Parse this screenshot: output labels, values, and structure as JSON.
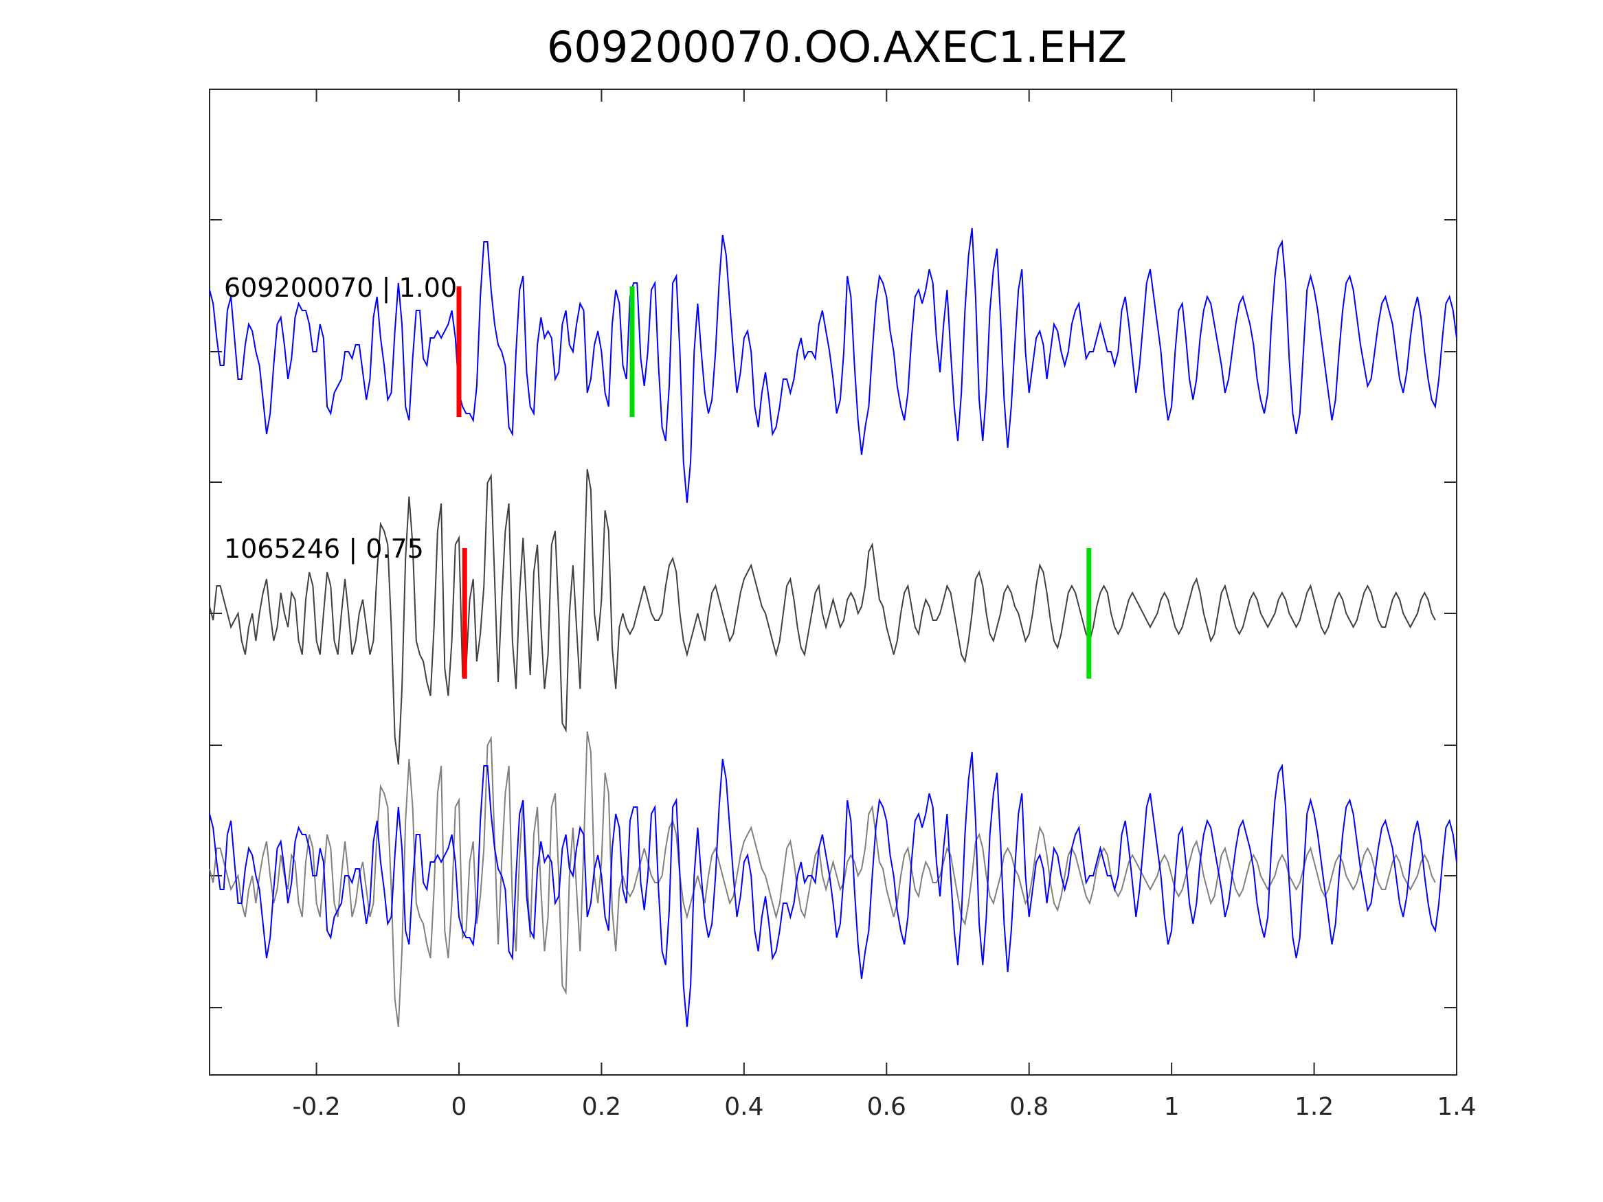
{
  "chart_data": {
    "type": "line",
    "title": "609200070.OO.AXEC1.EHZ",
    "xlabel": "",
    "ylabel": "",
    "xlim": [
      -0.35,
      1.4
    ],
    "x_ticks": [
      -0.2,
      0,
      0.2,
      0.4,
      0.6,
      0.8,
      1,
      1.2,
      1.4
    ],
    "x_tick_labels": [
      "-0.2",
      "0",
      "0.2",
      "0.4",
      "0.6",
      "0.8",
      "1",
      "1.2",
      "1.4"
    ],
    "y_tick_labels": [],
    "grid": false,
    "colors": {
      "template": "#0000ff",
      "detection": "#404040",
      "overlay_detection": "#808080",
      "p_pick": "#ff0000",
      "s_pick": "#00dd00",
      "axes": "#262626"
    },
    "traces": [
      {
        "label": "609200070 | 1.00",
        "name": "609200070",
        "correlation": 1.0,
        "color": "#0000ff",
        "p_pick": 0.0,
        "s_pick": 0.243
      },
      {
        "label": "1065246 | 0.75",
        "name": "1065246",
        "correlation": 0.75,
        "color": "#404040",
        "p_pick": 0.008,
        "s_pick": 0.884
      }
    ],
    "overlay": {
      "description_visible": false,
      "series": [
        "609200070",
        "1065246"
      ]
    },
    "series_x": {
      "start": -0.35,
      "end": 1.4,
      "step": 0.005
    },
    "series": [
      {
        "name": "609200070",
        "values": [
          0.45,
          0.35,
          0.1,
          -0.1,
          -0.1,
          0.3,
          0.4,
          0.1,
          -0.2,
          -0.2,
          0.05,
          0.2,
          0.15,
          0.0,
          -0.1,
          -0.35,
          -0.6,
          -0.45,
          -0.1,
          0.2,
          0.25,
          0.05,
          -0.2,
          -0.05,
          0.25,
          0.35,
          0.3,
          0.3,
          0.2,
          0.0,
          0.0,
          0.2,
          0.1,
          -0.4,
          -0.45,
          -0.3,
          -0.25,
          -0.2,
          0.0,
          0.0,
          -0.05,
          0.05,
          0.05,
          -0.15,
          -0.35,
          -0.2,
          0.25,
          0.4,
          0.1,
          -0.1,
          -0.35,
          -0.3,
          0.15,
          0.5,
          0.2,
          -0.4,
          -0.5,
          -0.05,
          0.3,
          0.3,
          -0.05,
          -0.1,
          0.1,
          0.1,
          0.15,
          0.1,
          0.15,
          0.2,
          0.3,
          0.1,
          -0.3,
          -0.4,
          -0.45,
          -0.45,
          -0.5,
          -0.25,
          0.4,
          0.8,
          0.8,
          0.45,
          0.2,
          0.05,
          0.0,
          -0.1,
          -0.55,
          -0.6,
          0.0,
          0.45,
          0.55,
          -0.15,
          -0.4,
          -0.45,
          0.05,
          0.25,
          0.1,
          0.15,
          0.1,
          -0.2,
          -0.15,
          0.2,
          0.3,
          0.05,
          0.0,
          0.2,
          0.35,
          0.3,
          -0.3,
          -0.2,
          0.05,
          0.15,
          0.0,
          -0.3,
          -0.4,
          0.2,
          0.45,
          0.35,
          -0.1,
          -0.2,
          0.4,
          0.5,
          0.5,
          -0.05,
          -0.25,
          0.0,
          0.45,
          0.5,
          -0.1,
          -0.55,
          -0.65,
          -0.25,
          0.5,
          0.55,
          0.0,
          -0.8,
          -1.1,
          -0.8,
          0.0,
          0.35,
          0.0,
          -0.3,
          -0.45,
          -0.35,
          0.0,
          0.5,
          0.85,
          0.7,
          0.35,
          0.0,
          -0.3,
          -0.15,
          0.1,
          0.15,
          0.0,
          -0.4,
          -0.55,
          -0.3,
          -0.15,
          -0.35,
          -0.6,
          -0.55,
          -0.4,
          -0.2,
          -0.2,
          -0.3,
          -0.2,
          0.0,
          0.1,
          -0.05,
          0.0,
          0.0,
          -0.05,
          0.2,
          0.3,
          0.15,
          0.0,
          -0.2,
          -0.45,
          -0.35,
          0.0,
          0.55,
          0.4,
          -0.1,
          -0.5,
          -0.75,
          -0.55,
          -0.4,
          0.0,
          0.35,
          0.55,
          0.5,
          0.4,
          0.15,
          0.0,
          -0.25,
          -0.4,
          -0.5,
          -0.3,
          0.1,
          0.4,
          0.45,
          0.35,
          0.45,
          0.6,
          0.5,
          0.1,
          -0.15,
          0.2,
          0.45,
          0.0,
          -0.4,
          -0.65,
          -0.3,
          0.3,
          0.7,
          0.9,
          0.4,
          -0.35,
          -0.65,
          -0.3,
          0.3,
          0.6,
          0.75,
          0.25,
          -0.35,
          -0.7,
          -0.4,
          0.05,
          0.45,
          0.6,
          0.0,
          -0.3,
          -0.1,
          0.1,
          0.15,
          0.05,
          -0.2,
          0.0,
          0.2,
          0.15,
          0.0,
          -0.1,
          0.0,
          0.2,
          0.3,
          0.35,
          0.15,
          -0.05,
          0.0,
          0.0,
          0.1,
          0.2,
          0.1,
          0.0,
          0.0,
          -0.1,
          0.0,
          0.3,
          0.4,
          0.2,
          -0.05,
          -0.3,
          -0.1,
          0.2,
          0.5,
          0.6,
          0.4,
          0.2,
          0.0,
          -0.3,
          -0.5,
          -0.4,
          0.0,
          0.3,
          0.35,
          0.1,
          -0.2,
          -0.35,
          -0.2,
          0.1,
          0.3,
          0.4,
          0.35,
          0.2,
          0.05,
          -0.1,
          -0.3,
          -0.2,
          0.0,
          0.2,
          0.35,
          0.4,
          0.3,
          0.2,
          0.05,
          -0.2,
          -0.35,
          -0.45,
          -0.3,
          0.2,
          0.55,
          0.75,
          0.8,
          0.5,
          -0.05,
          -0.45,
          -0.6,
          -0.45,
          0.0,
          0.45,
          0.55,
          0.45,
          0.3,
          0.1,
          -0.1,
          -0.3,
          -0.5,
          -0.35,
          0.0,
          0.3,
          0.5,
          0.55,
          0.45,
          0.25,
          0.05,
          -0.1,
          -0.25,
          -0.2,
          0.0,
          0.2,
          0.35,
          0.4,
          0.3,
          0.2,
          0.0,
          -0.2,
          -0.3,
          -0.15,
          0.1,
          0.3,
          0.4,
          0.25,
          0.0,
          -0.2,
          -0.35,
          -0.4,
          -0.2,
          0.1,
          0.35,
          0.4,
          0.3,
          0.1,
          -0.1,
          -0.2,
          -0.1,
          0.1,
          0.3
        ]
      },
      {
        "name": "1065246",
        "values": [
          0.05,
          -0.05,
          0.2,
          0.2,
          0.1,
          0.0,
          -0.1,
          -0.05,
          0.0,
          -0.2,
          -0.3,
          -0.1,
          0.0,
          -0.2,
          0.0,
          0.15,
          0.25,
          0.0,
          -0.2,
          -0.1,
          0.15,
          0.0,
          -0.1,
          0.15,
          0.1,
          -0.2,
          -0.3,
          0.1,
          0.3,
          0.2,
          -0.2,
          -0.3,
          0.0,
          0.3,
          0.2,
          -0.2,
          -0.3,
          0.0,
          0.25,
          0.0,
          -0.3,
          -0.2,
          0.0,
          0.1,
          -0.1,
          -0.3,
          -0.2,
          0.3,
          0.65,
          0.6,
          0.5,
          -0.1,
          -0.9,
          -1.1,
          -0.55,
          0.4,
          0.85,
          0.5,
          -0.2,
          -0.3,
          -0.35,
          -0.5,
          -0.6,
          -0.1,
          0.6,
          0.8,
          -0.4,
          -0.6,
          -0.2,
          0.5,
          0.55,
          -0.45,
          -0.4,
          0.1,
          0.25,
          -0.35,
          -0.15,
          0.2,
          0.95,
          1.0,
          0.25,
          -0.5,
          0.1,
          0.6,
          0.8,
          -0.2,
          -0.55,
          0.15,
          0.55,
          0.05,
          -0.45,
          0.3,
          0.5,
          -0.1,
          -0.55,
          -0.3,
          0.5,
          0.6,
          0.0,
          -0.8,
          -0.85,
          0.0,
          0.35,
          -0.1,
          -0.55,
          0.2,
          1.05,
          0.9,
          0.0,
          -0.2,
          0.1,
          0.75,
          0.6,
          -0.25,
          -0.55,
          -0.1,
          0.0,
          -0.1,
          -0.15,
          -0.1,
          0.0,
          0.1,
          0.2,
          0.1,
          0.0,
          -0.05,
          -0.05,
          0.0,
          0.2,
          0.35,
          0.4,
          0.3,
          0.0,
          -0.2,
          -0.3,
          -0.2,
          -0.1,
          0.0,
          -0.1,
          -0.2,
          0.0,
          0.15,
          0.2,
          0.1,
          0.0,
          -0.1,
          -0.2,
          -0.15,
          0.0,
          0.15,
          0.25,
          0.3,
          0.35,
          0.25,
          0.15,
          0.05,
          0.0,
          -0.1,
          -0.2,
          -0.3,
          -0.2,
          0.0,
          0.2,
          0.25,
          0.1,
          -0.1,
          -0.25,
          -0.3,
          -0.15,
          0.0,
          0.15,
          0.2,
          0.0,
          -0.1,
          0.0,
          0.1,
          0.0,
          -0.1,
          -0.05,
          0.1,
          0.15,
          0.1,
          0.0,
          0.05,
          0.2,
          0.45,
          0.5,
          0.3,
          0.1,
          0.05,
          -0.1,
          -0.2,
          -0.3,
          -0.2,
          0.0,
          0.15,
          0.2,
          0.05,
          -0.1,
          -0.15,
          0.0,
          0.1,
          0.05,
          -0.05,
          -0.05,
          0.0,
          0.1,
          0.2,
          0.15,
          0.0,
          -0.15,
          -0.3,
          -0.35,
          -0.2,
          0.0,
          0.25,
          0.3,
          0.2,
          0.0,
          -0.15,
          -0.2,
          -0.1,
          0.0,
          0.15,
          0.2,
          0.15,
          0.05,
          0.0,
          -0.1,
          -0.2,
          -0.15,
          0.0,
          0.2,
          0.35,
          0.3,
          0.15,
          -0.05,
          -0.2,
          -0.25,
          -0.15,
          0.0,
          0.15,
          0.2,
          0.15,
          0.05,
          -0.05,
          -0.15,
          -0.2,
          -0.1,
          0.05,
          0.15,
          0.2,
          0.15,
          0.0,
          -0.1,
          -0.15,
          -0.1,
          0.0,
          0.1,
          0.15,
          0.1,
          0.05,
          0.0,
          -0.05,
          -0.1,
          -0.05,
          0.0,
          0.1,
          0.15,
          0.1,
          0.0,
          -0.1,
          -0.15,
          -0.1,
          0.0,
          0.1,
          0.2,
          0.25,
          0.15,
          0.0,
          -0.1,
          -0.2,
          -0.15,
          0.0,
          0.15,
          0.2,
          0.1,
          0.0,
          -0.1,
          -0.15,
          -0.1,
          0.0,
          0.1,
          0.15,
          0.1,
          0.0,
          -0.05,
          -0.1,
          -0.05,
          0.0,
          0.1,
          0.15,
          0.1,
          0.0,
          -0.05,
          -0.1,
          -0.05,
          0.05,
          0.15,
          0.2,
          0.1,
          0.0,
          -0.1,
          -0.15,
          -0.1,
          0.0,
          0.1,
          0.15,
          0.1,
          0.0,
          -0.05,
          -0.1,
          -0.05,
          0.05,
          0.15,
          0.2,
          0.15,
          0.05,
          -0.05,
          -0.1,
          -0.1,
          0.0,
          0.1,
          0.15,
          0.1,
          0.0,
          -0.05,
          -0.1,
          -0.05,
          0.0,
          0.1,
          0.15,
          0.1,
          0.0,
          -0.05
        ]
      }
    ]
  }
}
